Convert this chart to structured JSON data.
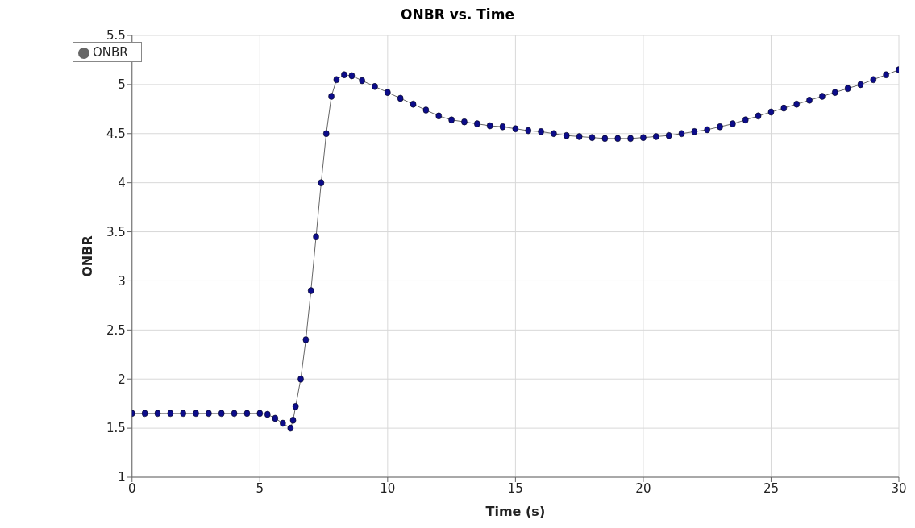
{
  "chart_data": {
    "type": "line",
    "title": "ONBR vs. Time",
    "xlabel": "Time (s)",
    "ylabel": "ONBR",
    "x": [
      0,
      0.5,
      1,
      1.5,
      2,
      2.5,
      3,
      3.5,
      4,
      4.5,
      5,
      5.3,
      5.6,
      5.9,
      6.2,
      6.3,
      6.4,
      6.6,
      6.8,
      7,
      7.2,
      7.4,
      7.6,
      7.8,
      8,
      8.3,
      8.6,
      9,
      9.5,
      10,
      10.5,
      11,
      11.5,
      12,
      12.5,
      13,
      13.5,
      14,
      14.5,
      15,
      15.5,
      16,
      16.5,
      17,
      17.5,
      18,
      18.5,
      19,
      19.5,
      20,
      20.5,
      21,
      21.5,
      22,
      22.5,
      23,
      23.5,
      24,
      24.5,
      25,
      25.5,
      26,
      26.5,
      27,
      27.5,
      28,
      28.5,
      29,
      29.5,
      30
    ],
    "series": [
      {
        "name": "ONBR",
        "color": "#0c0c8a",
        "values": [
          1.65,
          1.65,
          1.65,
          1.65,
          1.65,
          1.65,
          1.65,
          1.65,
          1.65,
          1.65,
          1.65,
          1.64,
          1.6,
          1.55,
          1.5,
          1.58,
          1.72,
          2.0,
          2.4,
          2.9,
          3.45,
          4.0,
          4.5,
          4.88,
          5.05,
          5.1,
          5.09,
          5.04,
          4.98,
          4.92,
          4.86,
          4.8,
          4.74,
          4.68,
          4.64,
          4.62,
          4.6,
          4.58,
          4.57,
          4.55,
          4.53,
          4.52,
          4.5,
          4.48,
          4.47,
          4.46,
          4.45,
          4.45,
          4.45,
          4.46,
          4.47,
          4.48,
          4.5,
          4.52,
          4.54,
          4.57,
          4.6,
          4.64,
          4.68,
          4.72,
          4.76,
          4.8,
          4.84,
          4.88,
          4.92,
          4.96,
          5.0,
          5.05,
          5.1,
          5.15
        ]
      }
    ],
    "xlim": [
      0,
      30
    ],
    "xticks": [
      0,
      5,
      10,
      15,
      20,
      25,
      30
    ],
    "ylim": [
      1,
      5.5
    ],
    "yticks": [
      1,
      1.5,
      2,
      2.5,
      3,
      3.5,
      4,
      4.5,
      5,
      5.5
    ],
    "grid": true,
    "legend": "top left",
    "marker": "circle",
    "line_style": "solid"
  }
}
